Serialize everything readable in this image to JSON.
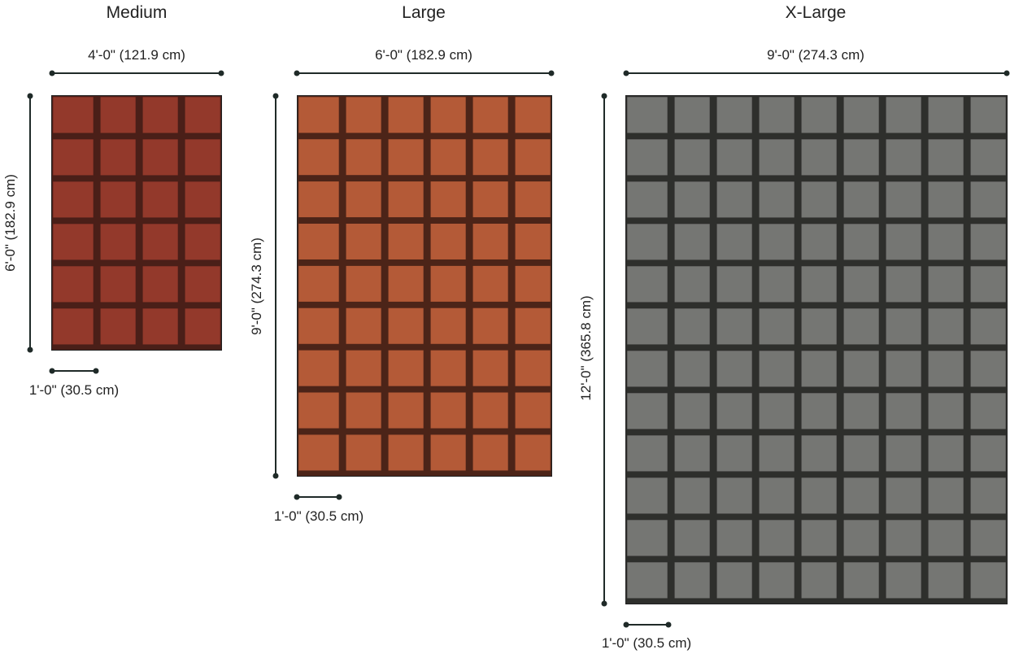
{
  "sizes": [
    {
      "title": "Medium",
      "width_label": "4'-0\" (121.9 cm)",
      "height_label": "6'-0\" (182.9 cm)",
      "scale_label": "1'-0\" (30.5 cm)",
      "cols": 4,
      "rows": 6,
      "tile_color": "#93392b",
      "grout_color": "#4a1f18"
    },
    {
      "title": "Large",
      "width_label": "6'-0\" (182.9 cm)",
      "height_label": "9'-0\" (274.3 cm)",
      "scale_label": "1'-0\" (30.5 cm)",
      "cols": 6,
      "rows": 9,
      "tile_color": "#b45a37",
      "grout_color": "#4c2418"
    },
    {
      "title": "X-Large",
      "width_label": "9'-0\" (274.3 cm)",
      "height_label": "12'-0\" (365.8 cm)",
      "scale_label": "1'-0\" (30.5 cm)",
      "cols": 9,
      "rows": 12,
      "tile_color": "#757673",
      "grout_color": "#2e2f2c"
    }
  ]
}
